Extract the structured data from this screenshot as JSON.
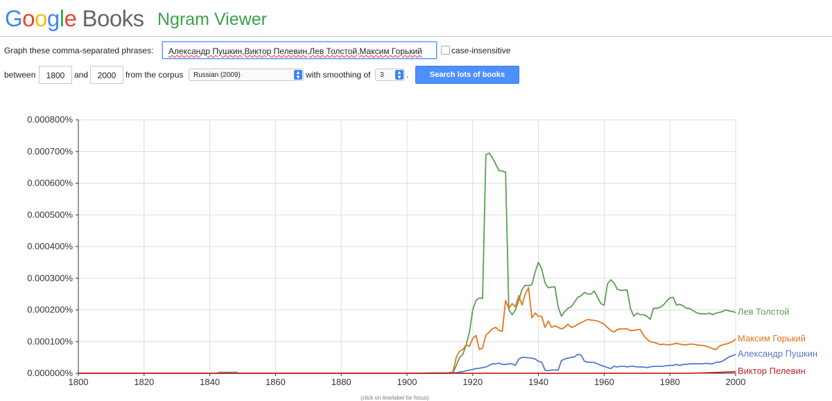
{
  "header": {
    "logo_google": "Google",
    "logo_books": "Books",
    "title": "Ngram Viewer"
  },
  "form": {
    "phrases_label": "Graph these comma-separated phrases:",
    "phrases_value": "Александр Пушкин,Виктор Пелевин,Лев Толстой,Максим Горький",
    "case_insensitive_label": "case-insensitive",
    "case_insensitive_checked": false,
    "between_label": "between",
    "year_start": "1800",
    "and_label": "and",
    "year_end": "2000",
    "corpus_label": "from the corpus",
    "corpus_value": "Russian (2009)",
    "smoothing_label": "with smoothing of",
    "smoothing_value": "3",
    "period": ".",
    "search_button": "Search lots of books"
  },
  "hint": "(click on line/label for focus)",
  "chart_data": {
    "type": "line",
    "xlim": [
      1800,
      2000
    ],
    "ylim": [
      0,
      0.0008
    ],
    "x_ticks": [
      "1800",
      "1820",
      "1840",
      "1860",
      "1880",
      "1900",
      "1920",
      "1940",
      "1960",
      "1980",
      "2000"
    ],
    "y_ticks": [
      "0.000000%",
      "0.000100%",
      "0.000200%",
      "0.000300%",
      "0.000400%",
      "0.000500%",
      "0.000600%",
      "0.000700%",
      "0.000800%"
    ],
    "grid": true,
    "legend": "right-end-labels",
    "series": [
      {
        "name": "Лев Толстой",
        "color": "#5a9e50",
        "x": [
          1800,
          1842,
          1843,
          1848,
          1849,
          1850,
          1900,
          1914,
          1915,
          1916,
          1917,
          1918,
          1919,
          1920,
          1921,
          1922,
          1923,
          1924,
          1925,
          1926,
          1927,
          1928,
          1929,
          1930,
          1931,
          1932,
          1933,
          1934,
          1935,
          1936,
          1937,
          1938,
          1939,
          1940,
          1941,
          1942,
          1943,
          1944,
          1945,
          1946,
          1947,
          1948,
          1949,
          1950,
          1951,
          1952,
          1953,
          1954,
          1955,
          1956,
          1957,
          1958,
          1959,
          1960,
          1961,
          1962,
          1963,
          1964,
          1965,
          1966,
          1967,
          1968,
          1969,
          1970,
          1971,
          1972,
          1973,
          1974,
          1975,
          1976,
          1977,
          1978,
          1979,
          1980,
          1981,
          1982,
          1983,
          1984,
          1985,
          1986,
          1987,
          1988,
          1989,
          1990,
          1991,
          1992,
          1993,
          1994,
          1995,
          1996,
          1997,
          1998,
          1999,
          2000
        ],
        "y": [
          0,
          0,
          3e-06,
          3e-06,
          0,
          0,
          0,
          2e-06,
          2.5e-05,
          5e-05,
          6e-05,
          9e-05,
          0.00013,
          0.0002,
          0.00023,
          0.000238,
          0.000236,
          0.00069,
          0.000695,
          0.00068,
          0.00066,
          0.00064,
          0.000638,
          0.000635,
          0.0002,
          0.000185,
          0.0002,
          0.00023,
          0.000265,
          0.000278,
          0.000276,
          0.00028,
          0.00032,
          0.00035,
          0.00033,
          0.000285,
          0.00027,
          0.000272,
          0.000273,
          0.00021,
          0.00018,
          0.000195,
          0.000205,
          0.00021,
          0.000225,
          0.00024,
          0.000245,
          0.000255,
          0.00025,
          0.00025,
          0.00026,
          0.00024,
          0.00022,
          0.000215,
          0.000282,
          0.000295,
          0.000285,
          0.000265,
          0.000262,
          0.000262,
          0.000263,
          0.000205,
          0.00018,
          0.00019,
          0.000185,
          0.000185,
          0.00018,
          0.00017,
          0.000205,
          0.000205,
          0.000208,
          0.000215,
          0.000228,
          0.000238,
          0.00024,
          0.000215,
          0.000218,
          0.000213,
          0.000205,
          0.000205,
          0.000198,
          0.000192,
          0.000188,
          0.000188,
          0.000187,
          0.00019,
          0.000185,
          0.00019,
          0.000192,
          0.000195,
          0.0002,
          0.000197,
          0.000195,
          0.000192
        ]
      },
      {
        "name": "Максим Горький",
        "color": "#e8731b",
        "x": [
          1800,
          1912,
          1914,
          1915,
          1916,
          1917,
          1918,
          1919,
          1920,
          1921,
          1922,
          1923,
          1924,
          1925,
          1926,
          1927,
          1928,
          1929,
          1930,
          1931,
          1932,
          1933,
          1934,
          1935,
          1936,
          1937,
          1938,
          1939,
          1940,
          1941,
          1942,
          1943,
          1944,
          1945,
          1946,
          1947,
          1948,
          1949,
          1950,
          1951,
          1952,
          1953,
          1954,
          1955,
          1956,
          1957,
          1958,
          1959,
          1960,
          1961,
          1962,
          1963,
          1964,
          1965,
          1966,
          1967,
          1968,
          1969,
          1970,
          1971,
          1972,
          1973,
          1974,
          1975,
          1976,
          1977,
          1978,
          1979,
          1980,
          1981,
          1982,
          1983,
          1984,
          1985,
          1986,
          1987,
          1988,
          1989,
          1990,
          1991,
          1992,
          1993,
          1994,
          1995,
          1996,
          1997,
          1998,
          1999,
          2000
        ],
        "y": [
          0,
          0,
          5e-06,
          5e-05,
          7e-05,
          7.5e-05,
          9e-05,
          8.5e-05,
          0.00011,
          0.00012,
          7.5e-05,
          8e-05,
          0.00012,
          0.00013,
          0.00014,
          0.000145,
          0.000135,
          0.000133,
          0.00023,
          0.000205,
          0.00022,
          0.00021,
          0.000245,
          0.000215,
          0.00025,
          0.00027,
          0.000175,
          0.00019,
          0.00018,
          0.00018,
          0.000145,
          0.000165,
          0.000145,
          0.00015,
          0.000145,
          0.00014,
          0.000145,
          0.000155,
          0.000145,
          0.000148,
          0.000155,
          0.00016,
          0.000165,
          0.00017,
          0.000168,
          0.000167,
          0.000165,
          0.00016,
          0.000155,
          0.000145,
          0.000135,
          0.00013,
          0.000138,
          0.00014,
          0.00014,
          0.00014,
          0.000135,
          0.000135,
          0.000138,
          0.000138,
          0.00012,
          0.000108,
          0.0001,
          9.8e-05,
          9.5e-05,
          9e-05,
          9.2e-05,
          9e-05,
          9e-05,
          9.2e-05,
          9.5e-05,
          9.2e-05,
          9e-05,
          9e-05,
          9.2e-05,
          9.2e-05,
          9e-05,
          8.8e-05,
          8.8e-05,
          8.6e-05,
          8.2e-05,
          7.8e-05,
          7.5e-05,
          8.5e-05,
          9e-05,
          9.2e-05,
          9.5e-05,
          0.0001,
          0.000108
        ]
      },
      {
        "name": "Александр Пушкин",
        "color": "#5577cc",
        "x": [
          1800,
          1912,
          1915,
          1916,
          1917,
          1918,
          1919,
          1920,
          1921,
          1922,
          1923,
          1924,
          1925,
          1926,
          1927,
          1928,
          1929,
          1930,
          1931,
          1932,
          1933,
          1934,
          1935,
          1936,
          1937,
          1938,
          1939,
          1940,
          1941,
          1942,
          1943,
          1944,
          1945,
          1946,
          1947,
          1948,
          1949,
          1950,
          1951,
          1952,
          1953,
          1954,
          1955,
          1956,
          1957,
          1958,
          1959,
          1960,
          1961,
          1962,
          1963,
          1964,
          1965,
          1966,
          1967,
          1968,
          1969,
          1970,
          1971,
          1972,
          1973,
          1974,
          1975,
          1976,
          1977,
          1978,
          1979,
          1980,
          1981,
          1982,
          1983,
          1984,
          1985,
          1986,
          1987,
          1988,
          1989,
          1990,
          1991,
          1992,
          1993,
          1994,
          1995,
          1996,
          1997,
          1998,
          1999,
          2000
        ],
        "y": [
          0,
          0,
          2e-06,
          4e-06,
          5e-06,
          8e-06,
          1e-05,
          1.2e-05,
          1.5e-05,
          1.6e-05,
          1.8e-05,
          2e-05,
          2.5e-05,
          3e-05,
          3e-05,
          3.2e-05,
          2.8e-05,
          2.8e-05,
          3e-05,
          3e-05,
          2.5e-05,
          4.5e-05,
          5e-05,
          5e-05,
          4.9e-05,
          4.8e-05,
          4.5e-05,
          3.8e-05,
          3.5e-05,
          1e-05,
          8e-06,
          1e-05,
          1e-05,
          1e-05,
          4e-05,
          4.5e-05,
          4.8e-05,
          5e-05,
          5.2e-05,
          6e-05,
          5.7e-05,
          3.8e-05,
          3.5e-05,
          3.5e-05,
          3.4e-05,
          3e-05,
          2.5e-05,
          2.2e-05,
          1.8e-05,
          1.5e-05,
          2.2e-05,
          2e-05,
          2.2e-05,
          2.2e-05,
          2e-05,
          2.2e-05,
          2.2e-05,
          2e-05,
          2e-05,
          2e-05,
          1.8e-05,
          2e-05,
          2.2e-05,
          2.2e-05,
          2.2e-05,
          2.2e-05,
          2.4e-05,
          2.5e-05,
          2.5e-05,
          2.8e-05,
          2.5e-05,
          2.8e-05,
          2.8e-05,
          3e-05,
          3e-05,
          3e-05,
          3e-05,
          3e-05,
          3.2e-05,
          3e-05,
          3e-05,
          3.5e-05,
          3.5e-05,
          3.8e-05,
          4.5e-05,
          5.2e-05,
          5.5e-05,
          6e-05
        ]
      },
      {
        "name": "Виктор Пелевин",
        "color": "#cc2222",
        "x": [
          1800,
          1985,
          1990,
          1995,
          2000
        ],
        "y": [
          0,
          0,
          1e-06,
          3e-06,
          5e-06
        ]
      }
    ]
  }
}
